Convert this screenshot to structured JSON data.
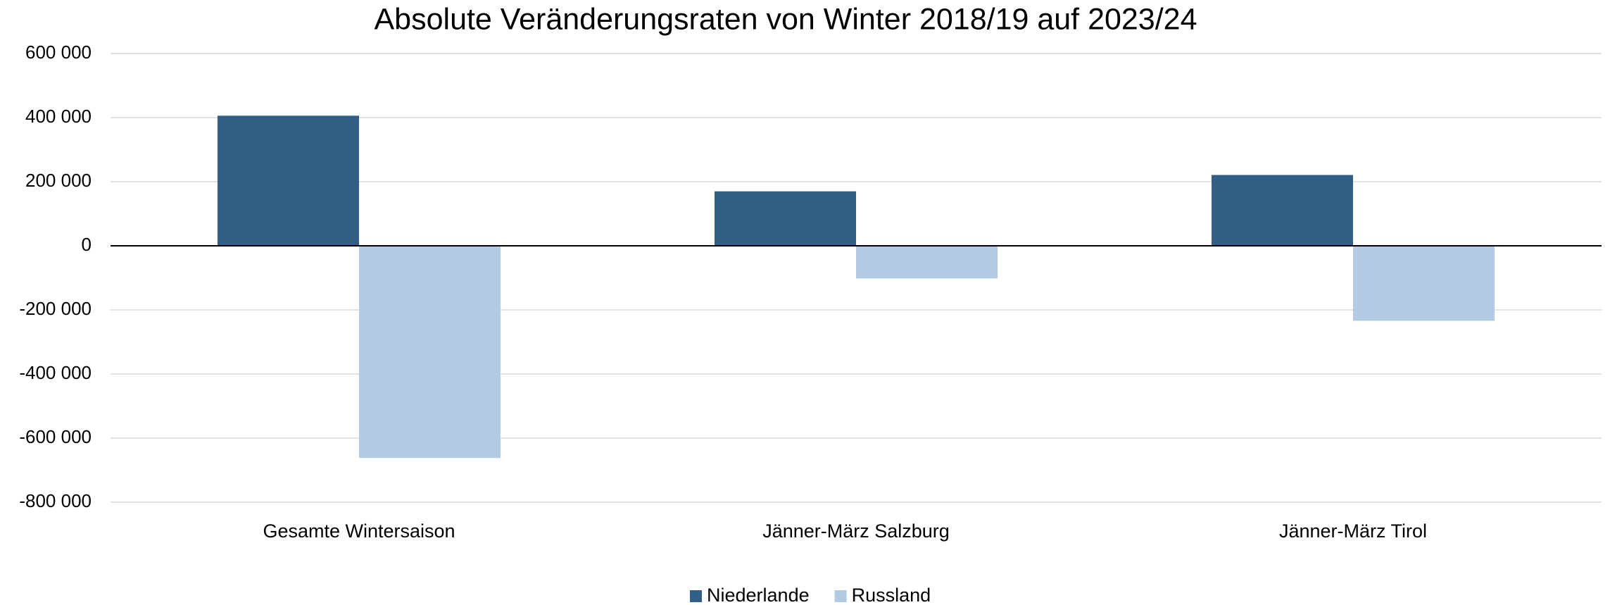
{
  "chart_data": {
    "type": "bar",
    "title": "Absolute Veränderungsraten von Winter 2018/19 auf 2023/24",
    "categories": [
      "Gesamte Wintersaison",
      "Jänner-März Salzburg",
      "Jänner-März Tirol"
    ],
    "series": [
      {
        "name": "Niederlande",
        "color": "#335f87",
        "values": [
          406000,
          170000,
          221000
        ]
      },
      {
        "name": "Russland",
        "color": "#b2cbe3",
        "values": [
          -662000,
          -102000,
          -234000
        ]
      }
    ],
    "ylim": [
      -800000,
      600000
    ],
    "yticks": [
      {
        "value": -800000,
        "label": "-800 000"
      },
      {
        "value": -600000,
        "label": "-600 000"
      },
      {
        "value": -400000,
        "label": "-400 000"
      },
      {
        "value": -200000,
        "label": "-200 000"
      },
      0,
      {
        "value": 200000,
        "label": "200 000"
      },
      {
        "value": 400000,
        "label": "400 000"
      },
      {
        "value": 600000,
        "label": "600 000"
      }
    ],
    "grid": true,
    "legend": "bottom"
  }
}
